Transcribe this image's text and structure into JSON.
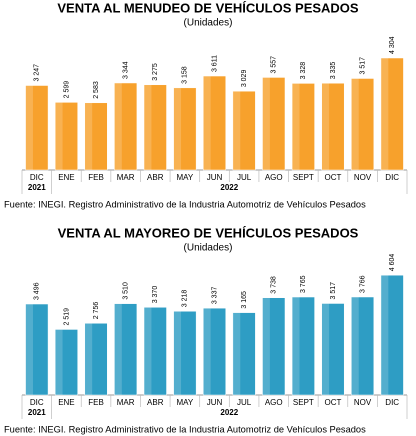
{
  "chart_data": [
    {
      "type": "bar",
      "title": "VENTA AL MENUDEO DE VEHÍCULOS PESADOS",
      "subtitle": "(Unidades)",
      "categories": [
        "DIC",
        "ENE",
        "FEB",
        "MAR",
        "ABR",
        "MAY",
        "JUN",
        "JUL",
        "AGO",
        "SEPT",
        "OCT",
        "NOV",
        "DIC"
      ],
      "year_labels": [
        "2021",
        "2022"
      ],
      "values": [
        3247,
        2599,
        2583,
        3344,
        3275,
        3158,
        3611,
        3029,
        3557,
        3328,
        3335,
        3517,
        4304
      ],
      "value_labels": [
        "3 247",
        "2 599",
        "2 583",
        "3 344",
        "3 275",
        "3 158",
        "3 611",
        "3 029",
        "3 557",
        "3 328",
        "3 335",
        "3 517",
        "4 304"
      ],
      "color": "#f7a12c",
      "ylim": [
        0,
        4800
      ],
      "source": "Fuente: INEGI. Registro Administrativo de la Industria Automotriz de Vehículos Pesados"
    },
    {
      "type": "bar",
      "title": "VENTA AL MAYOREO DE VEHÍCULOS PESADOS",
      "subtitle": "(Unidades)",
      "categories": [
        "DIC",
        "ENE",
        "FEB",
        "MAR",
        "ABR",
        "MAY",
        "JUN",
        "JUL",
        "AGO",
        "SEPT",
        "OCT",
        "NOV",
        "DIC"
      ],
      "year_labels": [
        "2021",
        "2022"
      ],
      "values": [
        3496,
        2519,
        2756,
        3510,
        3370,
        3218,
        3337,
        3165,
        3738,
        3765,
        3517,
        3766,
        4604
      ],
      "value_labels": [
        "3 496",
        "2 519",
        "2 756",
        "3 510",
        "3 370",
        "3 218",
        "3 337",
        "3 165",
        "3 738",
        "3 765",
        "3 517",
        "3 766",
        "4 604"
      ],
      "color": "#2e9dc4",
      "ylim": [
        0,
        4800
      ],
      "source": "Fuente: INEGI. Registro Administrativo de la Industria Automotriz de Vehículos Pesados"
    }
  ]
}
